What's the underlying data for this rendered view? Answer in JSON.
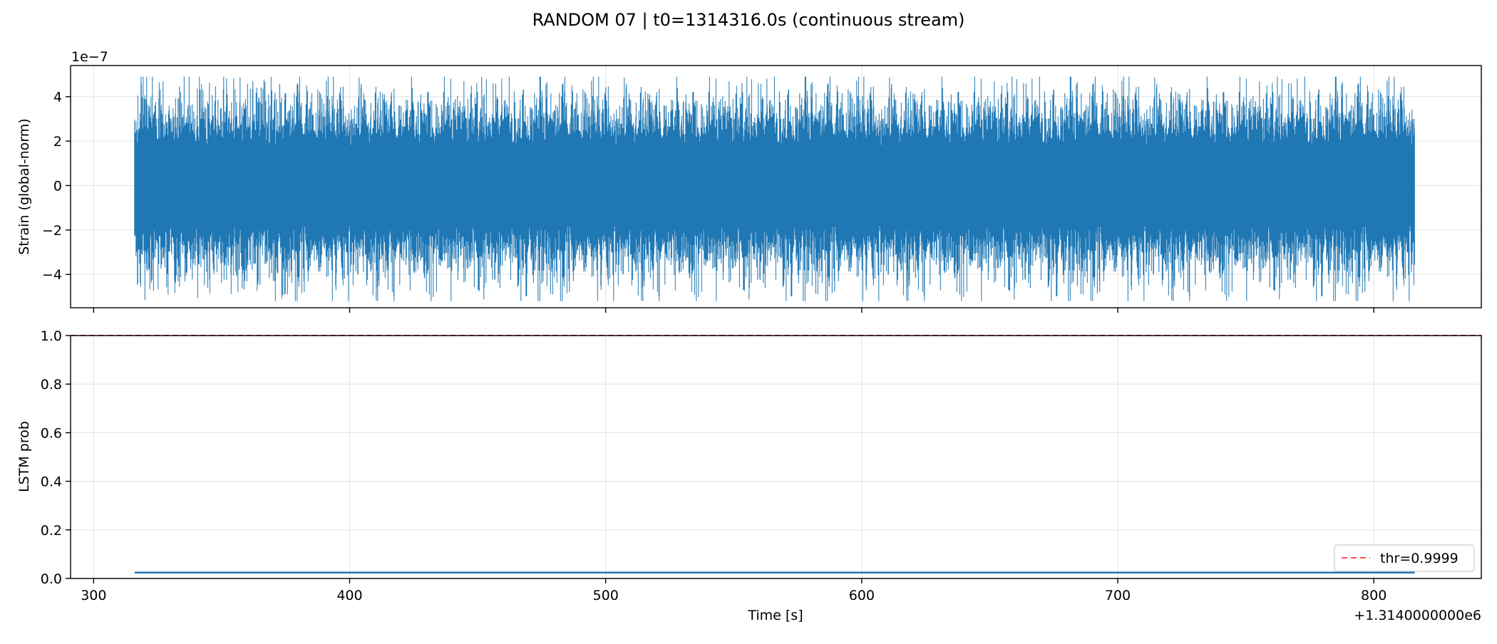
{
  "chart_data": [
    {
      "type": "line",
      "title": "RANDOM 07 | t0=1314316.0s (continuous stream)",
      "ylabel": "Strain (global-norm)",
      "y_scale_label": "1e−7",
      "xlim": [
        291,
        842
      ],
      "ylim": [
        -5.5,
        5.4
      ],
      "yticks": [
        -4,
        -2,
        0,
        2,
        4
      ],
      "ytick_labels": [
        "−4",
        "−2",
        "0",
        "2",
        "4"
      ],
      "xticks": [
        300,
        400,
        500,
        600,
        700,
        800
      ],
      "grid": true,
      "series": [
        {
          "color": "#1f77b4",
          "x_range": [
            316,
            816
          ],
          "description_values": {
            "typical_amplitude": 2.4,
            "max": 4.9,
            "min": -5.2
          }
        }
      ]
    },
    {
      "type": "line",
      "xlabel": "Time [s]",
      "ylabel": "LSTM prob",
      "x_offset_label": "+1.3140000000e6",
      "xlim": [
        291,
        842
      ],
      "ylim": [
        0.0,
        1.0
      ],
      "yticks": [
        0.0,
        0.2,
        0.4,
        0.6,
        0.8,
        1.0
      ],
      "ytick_labels": [
        "0.0",
        "0.2",
        "0.4",
        "0.6",
        "0.8",
        "1.0"
      ],
      "xticks": [
        300,
        400,
        500,
        600,
        700,
        800
      ],
      "xtick_labels": [
        "300",
        "400",
        "500",
        "600",
        "700",
        "800"
      ],
      "grid": true,
      "legend_position": "lower-right",
      "series": [
        {
          "color": "#1f77b4",
          "x": [
            316,
            816
          ],
          "y": [
            0.024,
            0.024
          ]
        }
      ],
      "threshold": {
        "name": "thr=0.9999",
        "value": 0.9999,
        "color": "#ff5050",
        "style": "dashed"
      }
    }
  ]
}
